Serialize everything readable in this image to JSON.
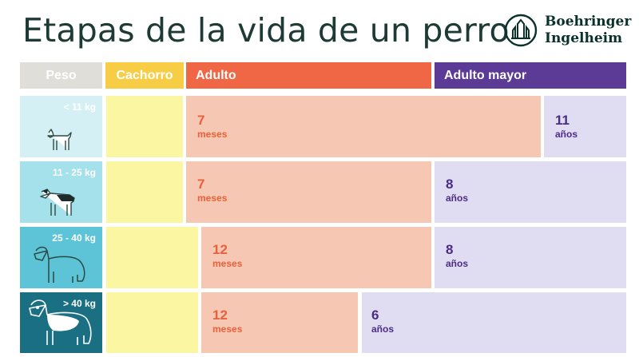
{
  "title": "Etapas de la vida de un perro",
  "brand": {
    "line1": "Boehringer",
    "line2": "Ingelheim"
  },
  "headers": {
    "peso": "Peso",
    "cachorro": "Cachorro",
    "adulto": "Adulto",
    "adulto_mayor": "Adulto mayor"
  },
  "rows": [
    {
      "peso": "< 11 kg",
      "adulto": {
        "value": "7",
        "unit": "meses"
      },
      "mayor": {
        "value": "11",
        "unit": "años"
      },
      "dog_icon": "small-dog-icon"
    },
    {
      "peso": "11 - 25 kg",
      "adulto": {
        "value": "7",
        "unit": "meses"
      },
      "mayor": {
        "value": "8",
        "unit": "años"
      },
      "dog_icon": "medium-dog-icon"
    },
    {
      "peso": "25 - 40 kg",
      "adulto": {
        "value": "12",
        "unit": "meses"
      },
      "mayor": {
        "value": "8",
        "unit": "años"
      },
      "dog_icon": "large-dog-icon"
    },
    {
      "peso": "> 40 kg",
      "adulto": {
        "value": "12",
        "unit": "meses"
      },
      "mayor": {
        "value": "6",
        "unit": "años"
      },
      "dog_icon": "giant-dog-icon"
    }
  ],
  "colors": {
    "title": "#1e3a34",
    "cachorro": "#f8cd46",
    "adulto": "#ef6745",
    "adulto_mayor": "#5c3b96",
    "peso_header": "#e0ded9"
  }
}
